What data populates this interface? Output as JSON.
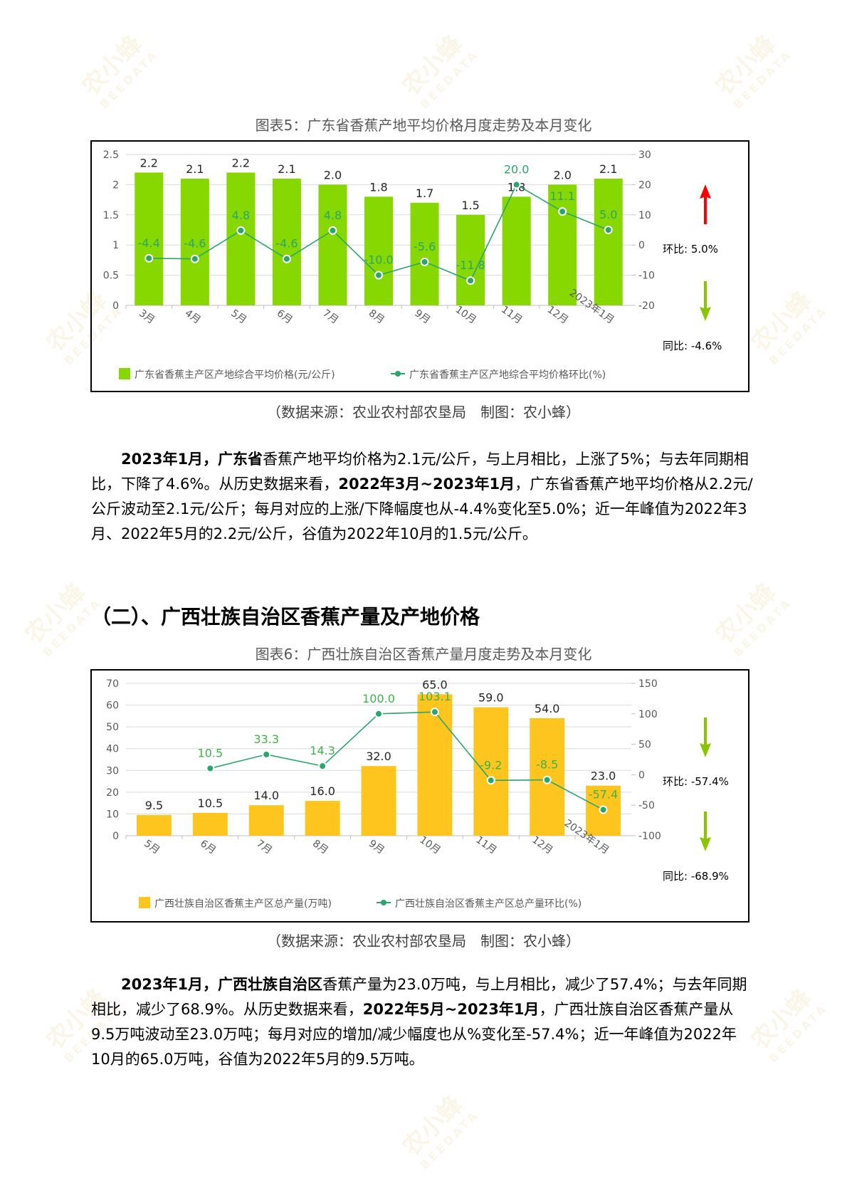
{
  "colors": {
    "gd_bar": "#86d800",
    "gd_line": "#2aa56c",
    "gx_bar": "#fdc51e",
    "gx_line": "#2aa56c",
    "gx_line_label": "#3db34a",
    "arrow_up": "#ff0000",
    "arrow_down": "#8bc400"
  },
  "watermark": {
    "brand": "农小蜂",
    "sub": "BEEDATA"
  },
  "figure5": {
    "title": "图表5：广东省香蕉产地平均价格月度走势及本月变化",
    "source": "（数据来源：农业农村部农垦局　制图：农小蜂）",
    "side": {
      "mom_label": "环比:",
      "mom_value": "5.0%",
      "mom_direction": "up",
      "yoy_label": "同比:",
      "yoy_value": "-4.6%",
      "yoy_direction": "down"
    }
  },
  "figure6": {
    "title": "图表6：广西壮族自治区香蕉产量月度走势及本月变化",
    "source": "（数据来源：农业农村部农垦局　制图：农小蜂）",
    "side": {
      "mom_label": "环比:",
      "mom_value": "-57.4%",
      "mom_direction": "down",
      "yoy_label": "同比:",
      "yoy_value": "-68.9%",
      "yoy_direction": "down"
    }
  },
  "section2": {
    "title": "（二）、广西壮族自治区香蕉产量及产地价格"
  },
  "paragraph1": {
    "lead_bold": "2023年1月，广东省",
    "t1": "香蕉产地平均价格为2.1元/公斤，与上月相比，上涨了5%；与去年同期相比，下降了4.6%。从历史数据来看，",
    "bold2": "2022年3月~2023年1月",
    "t2": "，广东省香蕉产地平均价格从2.2元/公斤波动至2.1元/公斤；每月对应的上涨/下降幅度也从-4.4%变化至5.0%；近一年峰值为2022年3月、2022年5月的2.2元/公斤，谷值为2022年10月的1.5元/公斤。"
  },
  "paragraph2": {
    "lead_bold": "2023年1月，广西壮族自治区",
    "t1": "香蕉产量为23.0万吨，与上月相比，减少了57.4%；与去年同期相比，减少了68.9%。从历史数据来看，",
    "bold2": "2022年5月~2023年1月",
    "t2": "，广西壮族自治区香蕉产量从9.5万吨波动至23.0万吨；每月对应的增加/减少幅度也从%变化至-57.4%；近一年峰值为2022年10月的65.0万吨，谷值为2022年5月的9.5万吨。"
  },
  "chart_data": [
    {
      "type": "bar",
      "title": "图表5：广东省香蕉产地平均价格月度走势及本月变化",
      "categories": [
        "3月",
        "4月",
        "5月",
        "6月",
        "7月",
        "8月",
        "9月",
        "10月",
        "11月",
        "12月",
        "2023年1月"
      ],
      "series": [
        {
          "name": "广东省香蕉主产区产地综合平均价格(元/公斤)",
          "type": "bar",
          "axis": "left",
          "values": [
            2.2,
            2.1,
            2.2,
            2.1,
            2.0,
            1.8,
            1.7,
            1.5,
            1.8,
            2.0,
            2.1
          ]
        },
        {
          "name": "广东省香蕉主产区产地综合平均价格环比(%)",
          "type": "line",
          "axis": "right",
          "values": [
            -4.4,
            -4.6,
            4.8,
            -4.6,
            4.8,
            -10.0,
            -5.6,
            -11.8,
            20.0,
            11.1,
            5.0
          ]
        }
      ],
      "y_left": {
        "ticks": [
          0,
          0.5,
          1,
          1.5,
          2,
          2.5
        ],
        "ylim": [
          0,
          2.5
        ]
      },
      "y_right": {
        "ticks": [
          -20,
          -10,
          0,
          10,
          20,
          30
        ],
        "ylim": [
          -20,
          30
        ]
      },
      "xlabel": "",
      "ylabel": "",
      "grid": true,
      "legend_position": "bottom"
    },
    {
      "type": "bar",
      "title": "图表6：广西壮族自治区香蕉产量月度走势及本月变化",
      "categories": [
        "5月",
        "6月",
        "7月",
        "8月",
        "9月",
        "10月",
        "11月",
        "12月",
        "2023年1月"
      ],
      "series": [
        {
          "name": "广西壮族自治区香蕉主产区总产量(万吨)",
          "type": "bar",
          "axis": "left",
          "values": [
            9.5,
            10.5,
            14.0,
            16.0,
            32.0,
            65.0,
            59.0,
            54.0,
            23.0
          ]
        },
        {
          "name": "广西壮族自治区香蕉主产区总产量环比(%)",
          "type": "line",
          "axis": "right",
          "values": [
            null,
            10.5,
            33.3,
            14.3,
            100.0,
            103.1,
            -9.2,
            -8.5,
            -57.4
          ]
        }
      ],
      "y_left": {
        "ticks": [
          0,
          10,
          20,
          30,
          40,
          50,
          60,
          70
        ],
        "ylim": [
          0,
          70
        ]
      },
      "y_right": {
        "ticks": [
          -100,
          -50,
          0,
          50,
          100,
          150
        ],
        "ylim": [
          -100,
          150
        ]
      },
      "xlabel": "",
      "ylabel": "",
      "grid": true,
      "legend_position": "bottom"
    }
  ]
}
